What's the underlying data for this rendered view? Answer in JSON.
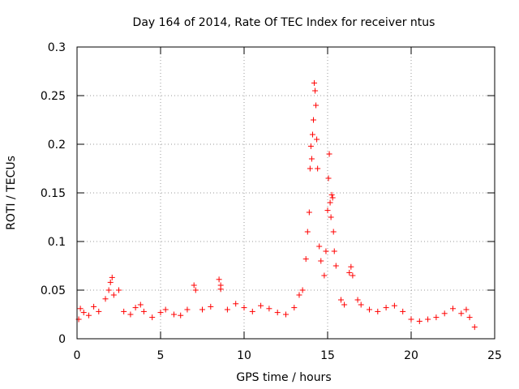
{
  "chart_data": {
    "type": "scatter",
    "title": "Day 164 of 2014, Rate Of TEC Index for receiver ntus",
    "xlabel": "GPS time / hours",
    "ylabel": "ROTI / TECUs",
    "xlim": [
      0,
      25
    ],
    "ylim": [
      0,
      0.3
    ],
    "xticks": [
      0,
      5,
      10,
      15,
      20,
      25
    ],
    "xtick_labels": [
      "0",
      "5",
      "10",
      "15",
      "20",
      "25"
    ],
    "yticks": [
      0,
      0.05,
      0.1,
      0.15,
      0.2,
      0.25,
      0.3
    ],
    "ytick_labels": [
      "0",
      "0.05",
      "0.1",
      "0.15",
      "0.2",
      "0.25",
      "0.3"
    ],
    "grid": true,
    "marker": "+",
    "marker_color": "#ff0000",
    "series": [
      {
        "name": "ROTI",
        "points": [
          [
            0.1,
            0.02
          ],
          [
            0.2,
            0.031
          ],
          [
            0.4,
            0.027
          ],
          [
            0.7,
            0.024
          ],
          [
            1.0,
            0.033
          ],
          [
            1.3,
            0.028
          ],
          [
            1.7,
            0.041
          ],
          [
            1.9,
            0.05
          ],
          [
            2.0,
            0.058
          ],
          [
            2.1,
            0.063
          ],
          [
            2.2,
            0.045
          ],
          [
            2.5,
            0.05
          ],
          [
            2.8,
            0.028
          ],
          [
            3.2,
            0.025
          ],
          [
            3.5,
            0.032
          ],
          [
            3.8,
            0.035
          ],
          [
            4.0,
            0.028
          ],
          [
            4.5,
            0.022
          ],
          [
            5.0,
            0.027
          ],
          [
            5.3,
            0.03
          ],
          [
            5.8,
            0.025
          ],
          [
            6.2,
            0.024
          ],
          [
            6.6,
            0.03
          ],
          [
            7.0,
            0.055
          ],
          [
            7.1,
            0.05
          ],
          [
            7.5,
            0.03
          ],
          [
            8.0,
            0.033
          ],
          [
            8.5,
            0.061
          ],
          [
            8.6,
            0.055
          ],
          [
            8.6,
            0.051
          ],
          [
            9.0,
            0.03
          ],
          [
            9.5,
            0.036
          ],
          [
            10.0,
            0.032
          ],
          [
            10.5,
            0.028
          ],
          [
            11.0,
            0.034
          ],
          [
            11.5,
            0.031
          ],
          [
            12.0,
            0.027
          ],
          [
            12.5,
            0.025
          ],
          [
            13.0,
            0.032
          ],
          [
            13.3,
            0.045
          ],
          [
            13.5,
            0.05
          ],
          [
            13.7,
            0.082
          ],
          [
            13.8,
            0.11
          ],
          [
            13.9,
            0.13
          ],
          [
            13.95,
            0.175
          ],
          [
            14.0,
            0.198
          ],
          [
            14.05,
            0.185
          ],
          [
            14.1,
            0.21
          ],
          [
            14.15,
            0.225
          ],
          [
            14.2,
            0.263
          ],
          [
            14.25,
            0.255
          ],
          [
            14.3,
            0.24
          ],
          [
            14.35,
            0.205
          ],
          [
            14.4,
            0.175
          ],
          [
            14.5,
            0.095
          ],
          [
            14.6,
            0.08
          ],
          [
            14.8,
            0.065
          ],
          [
            14.9,
            0.09
          ],
          [
            15.0,
            0.132
          ],
          [
            15.05,
            0.165
          ],
          [
            15.1,
            0.19
          ],
          [
            15.15,
            0.14
          ],
          [
            15.2,
            0.125
          ],
          [
            15.25,
            0.148
          ],
          [
            15.3,
            0.145
          ],
          [
            15.35,
            0.11
          ],
          [
            15.4,
            0.09
          ],
          [
            15.5,
            0.075
          ],
          [
            15.8,
            0.04
          ],
          [
            16.0,
            0.035
          ],
          [
            16.3,
            0.068
          ],
          [
            16.4,
            0.074
          ],
          [
            16.5,
            0.065
          ],
          [
            16.8,
            0.04
          ],
          [
            17.0,
            0.035
          ],
          [
            17.5,
            0.03
          ],
          [
            18.0,
            0.028
          ],
          [
            18.5,
            0.032
          ],
          [
            19.0,
            0.034
          ],
          [
            19.5,
            0.028
          ],
          [
            20.0,
            0.02
          ],
          [
            20.5,
            0.018
          ],
          [
            21.0,
            0.02
          ],
          [
            21.5,
            0.022
          ],
          [
            22.0,
            0.026
          ],
          [
            22.5,
            0.031
          ],
          [
            23.0,
            0.026
          ],
          [
            23.3,
            0.03
          ],
          [
            23.5,
            0.022
          ],
          [
            23.8,
            0.012
          ]
        ]
      }
    ]
  }
}
